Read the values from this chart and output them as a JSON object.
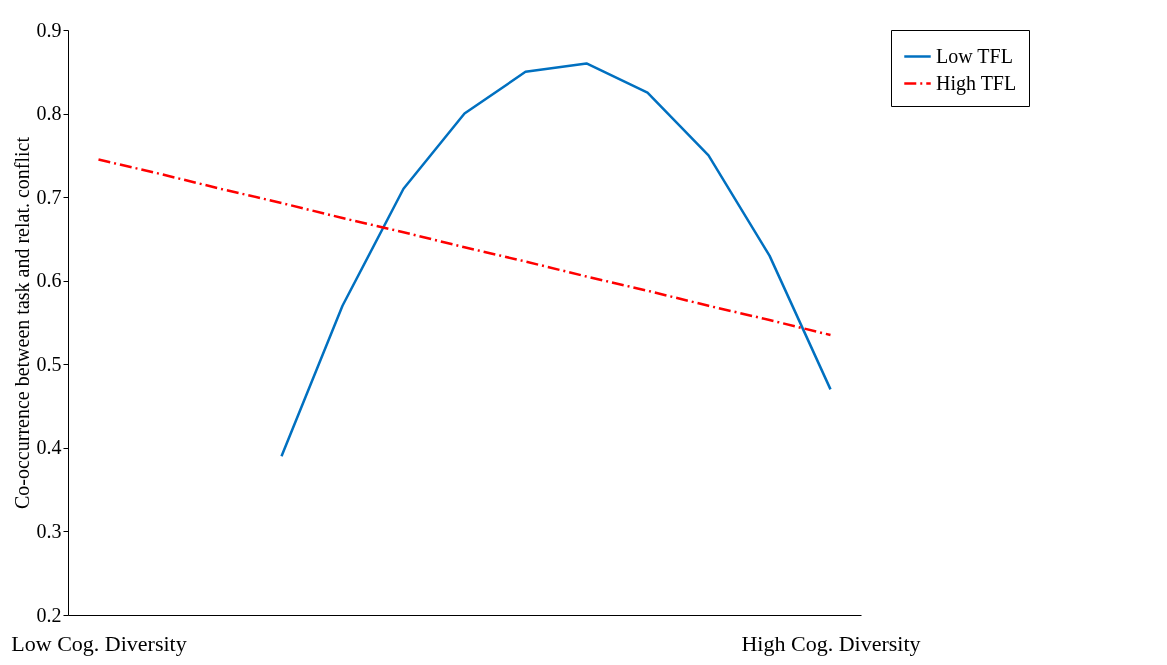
{
  "chart_data": {
    "type": "line",
    "ylabel": "Co-occurrence between task and relat. conflict",
    "categories": [
      "Low Cog. Diversity",
      null,
      null,
      null,
      null,
      null,
      null,
      null,
      null,
      null,
      null,
      null,
      "High Cog. Diversity"
    ],
    "series": [
      {
        "name": "Low TFL",
        "color": "#0070c0",
        "line_style": "solid",
        "values": [
          null,
          null,
          null,
          0.39,
          0.57,
          0.71,
          0.8,
          0.85,
          0.86,
          0.825,
          0.75,
          0.63,
          0.47
        ]
      },
      {
        "name": "High TFL",
        "color": "#ff0000",
        "line_style": "dashed",
        "values": [
          0.745,
          0.728,
          0.71,
          0.693,
          0.675,
          0.658,
          0.64,
          0.623,
          0.605,
          0.588,
          0.57,
          0.553,
          0.535
        ]
      }
    ],
    "ylim": [
      0.2,
      0.9
    ],
    "yticks": [
      0.2,
      0.3,
      0.4,
      0.5,
      0.6,
      0.7,
      0.8,
      0.9
    ],
    "grid": false,
    "legend": "right",
    "marker": "none"
  }
}
